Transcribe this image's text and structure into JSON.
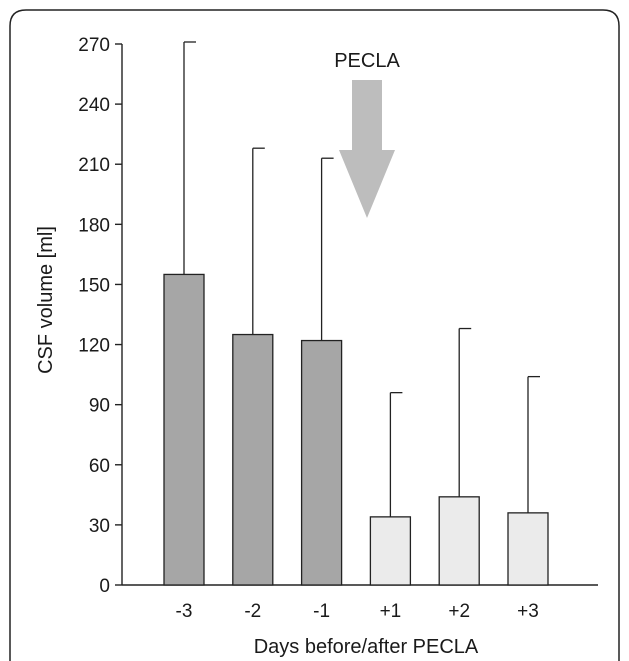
{
  "chart_data": {
    "type": "bar",
    "title": "",
    "xlabel": "Days before/after PECLA",
    "ylabel": "CSF volume [ml]",
    "ylim": [
      0,
      270
    ],
    "yticks": [
      0,
      30,
      60,
      90,
      120,
      150,
      180,
      210,
      240,
      270
    ],
    "grid": false,
    "categories": [
      "-3",
      "-2",
      "-1",
      "+1",
      "+2",
      "+3"
    ],
    "values": [
      155,
      125,
      122,
      34,
      44,
      36
    ],
    "error_upper": [
      271,
      218,
      213,
      96,
      128,
      104
    ],
    "bar_colors": [
      "#a6a6a6",
      "#a6a6a6",
      "#a6a6a6",
      "#ebebeb",
      "#ebebeb",
      "#ebebeb"
    ],
    "annotation": {
      "text": "PECLA",
      "arrow_color": "#bdbdbd"
    }
  }
}
